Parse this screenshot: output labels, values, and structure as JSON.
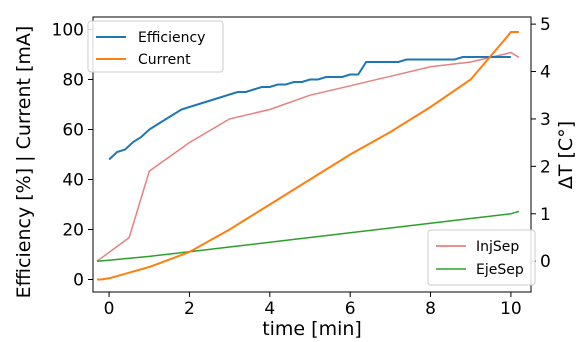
{
  "chart_data": {
    "type": "line",
    "xlabel": "time [min]",
    "ylabel_left": "Efficiency [%] | Current [mA]",
    "ylabel_right": "ΔT [C°]",
    "xlim": [
      -0.4,
      10.5
    ],
    "ylim_left": [
      -5,
      105
    ],
    "ylim_right": [
      -0.65,
      5.15
    ],
    "x_ticks": [
      0,
      2,
      4,
      6,
      8,
      10
    ],
    "x_tick_labels": [
      "0",
      "2",
      "4",
      "6",
      "8",
      "10"
    ],
    "y_left_ticks": [
      0,
      20,
      40,
      60,
      80,
      100
    ],
    "y_left_tick_labels": [
      "0",
      "20",
      "40",
      "60",
      "80",
      "100"
    ],
    "y_right_ticks": [
      0,
      1,
      2,
      3,
      4,
      5
    ],
    "y_right_tick_labels": [
      "0",
      "1",
      "2",
      "3",
      "4",
      "5"
    ],
    "grid": false,
    "legend_top": {
      "placement": "top-left",
      "entries": [
        {
          "label": "Efficiency",
          "color": "#1f77b4"
        },
        {
          "label": "Current",
          "color": "#ff7f0e"
        }
      ]
    },
    "legend_bottom": {
      "placement": "bottom-right",
      "entries": [
        {
          "label": "InjSep",
          "color": "#e06b6b"
        },
        {
          "label": "EjeSep",
          "color": "#2ca02c"
        }
      ]
    },
    "series": [
      {
        "name": "Efficiency",
        "axis": "left",
        "color": "#1f77b4",
        "x": [
          0.0,
          0.2,
          0.4,
          0.6,
          0.8,
          1.0,
          1.2,
          1.4,
          1.6,
          1.8,
          2.0,
          2.2,
          2.4,
          2.6,
          2.8,
          3.0,
          3.2,
          3.4,
          3.6,
          3.8,
          4.0,
          4.2,
          4.4,
          4.6,
          4.8,
          5.0,
          5.2,
          5.4,
          5.6,
          5.8,
          6.0,
          6.2,
          6.4,
          6.6,
          6.8,
          7.0,
          7.2,
          7.4,
          7.6,
          7.8,
          8.0,
          8.2,
          8.4,
          8.6,
          8.8,
          9.0,
          9.2,
          9.4,
          9.6,
          9.8,
          10.0
        ],
        "y": [
          48,
          51,
          52,
          55,
          57,
          60,
          62,
          64,
          66,
          68,
          69,
          70,
          71,
          72,
          73,
          74,
          75,
          75,
          76,
          77,
          77,
          78,
          78,
          79,
          79,
          80,
          80,
          81,
          81,
          81,
          82,
          82,
          87,
          87,
          87,
          87,
          87,
          88,
          88,
          88,
          88,
          88,
          88,
          88,
          89,
          89,
          89,
          89,
          89,
          89,
          89
        ]
      },
      {
        "name": "Current",
        "axis": "left",
        "color": "#ff7f0e",
        "x": [
          -0.3,
          -0.2,
          0.0,
          1.0,
          2.0,
          3.0,
          4.0,
          5.0,
          6.0,
          7.0,
          8.0,
          9.0,
          9.9,
          10.0,
          10.2
        ],
        "y": [
          0,
          0,
          0.5,
          5,
          11,
          20,
          30,
          40,
          50,
          59,
          69,
          80,
          97,
          99,
          99
        ]
      },
      {
        "name": "InjSep",
        "axis": "right",
        "color": "#e06b6b",
        "x": [
          -0.3,
          0.5,
          1.0,
          2.0,
          3.0,
          4.0,
          5.0,
          6.0,
          7.0,
          8.0,
          9.0,
          10.0,
          10.2
        ],
        "y": [
          0.0,
          0.5,
          1.9,
          2.5,
          3.0,
          3.2,
          3.5,
          3.7,
          3.9,
          4.1,
          4.2,
          4.4,
          4.3
        ]
      },
      {
        "name": "EjeSep",
        "axis": "right",
        "color": "#2ca02c",
        "x": [
          -0.3,
          0.0,
          1.0,
          2.0,
          3.0,
          4.0,
          5.0,
          6.0,
          7.0,
          8.0,
          9.0,
          10.0,
          10.2
        ],
        "y": [
          0.0,
          0.02,
          0.1,
          0.2,
          0.3,
          0.4,
          0.5,
          0.6,
          0.7,
          0.8,
          0.9,
          1.0,
          1.05
        ]
      }
    ]
  }
}
